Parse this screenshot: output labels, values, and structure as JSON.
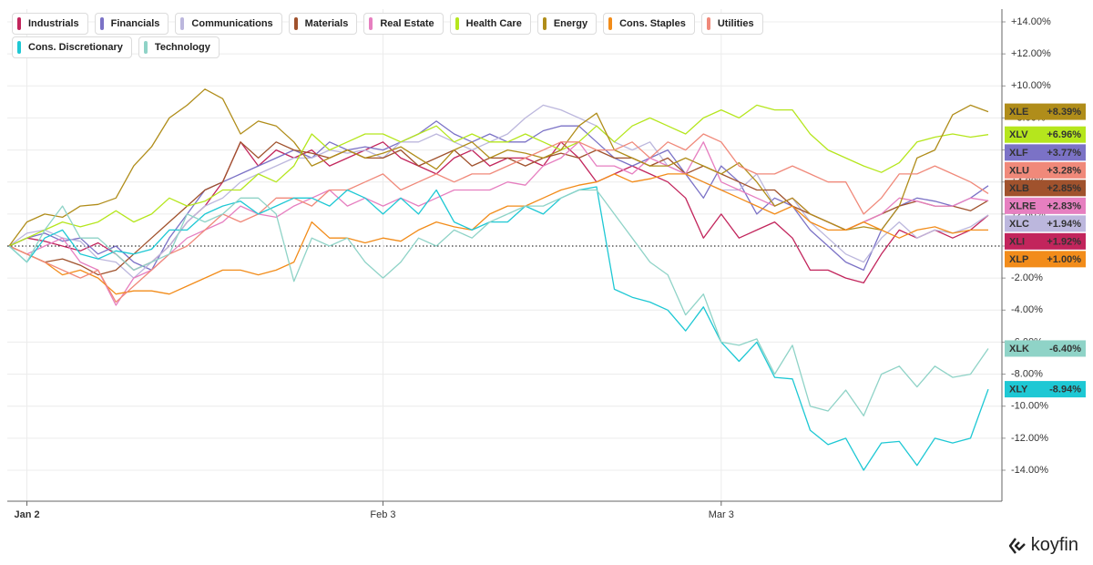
{
  "brand": "koyfin",
  "chart_data": {
    "type": "line",
    "categories": [
      null,
      "Jan 2",
      null,
      null,
      null,
      null,
      null,
      null,
      null,
      null,
      null,
      null,
      null,
      null,
      null,
      null,
      null,
      null,
      null,
      null,
      null,
      "Feb 3",
      null,
      null,
      null,
      null,
      null,
      null,
      null,
      null,
      null,
      null,
      null,
      null,
      null,
      null,
      null,
      null,
      null,
      null,
      "Mar 3",
      null,
      null,
      null,
      null,
      null,
      null,
      null,
      null,
      null,
      null,
      null,
      null,
      null,
      null,
      null
    ],
    "ylim": [
      -15,
      15
    ],
    "yticks": [
      {
        "value": 14,
        "label": "+14.00%"
      },
      {
        "value": 12,
        "label": "+12.00%"
      },
      {
        "value": 10,
        "label": "+10.00%"
      },
      {
        "value": 8,
        "label": "+8.00%"
      },
      {
        "value": 6,
        "label": "+6.00%"
      },
      {
        "value": 4,
        "label": "+4.00%"
      },
      {
        "value": 2,
        "label": "+2.00%"
      },
      {
        "value": 0,
        "label": "0.00%"
      },
      {
        "value": -2,
        "label": "-2.00%"
      },
      {
        "value": -4,
        "label": "-4.00%"
      },
      {
        "value": -6,
        "label": "-6.00%"
      },
      {
        "value": -8,
        "label": "-8.00%"
      },
      {
        "value": -10,
        "label": "-10.00%"
      },
      {
        "value": -12,
        "label": "-12.00%"
      },
      {
        "value": -14,
        "label": "-14.00%"
      }
    ],
    "grid": true,
    "legend": "top-left",
    "series": [
      {
        "name": "Industrials",
        "ticker": "XLI",
        "end_label": "+1.92%",
        "color": "#c2255c",
        "values": [
          0,
          0.5,
          0.3,
          0,
          -0.3,
          0.2,
          -0.5,
          -1.5,
          -1.0,
          0,
          1.5,
          2.5,
          4.0,
          6.5,
          5.0,
          6.0,
          5.5,
          6.0,
          5.0,
          5.5,
          6.0,
          6.5,
          5.5,
          5.0,
          4.5,
          5.5,
          6.0,
          5.0,
          5.5,
          5.5,
          5.0,
          6.5,
          5.5,
          4.0,
          4.5,
          5.0,
          4.5,
          4.0,
          3.0,
          0.5,
          2.0,
          0.5,
          1.0,
          1.5,
          0.5,
          -1.5,
          -1.5,
          -2.0,
          -2.3,
          -0.5,
          1.0,
          0.5,
          1.0,
          0.5,
          1.0,
          1.92
        ]
      },
      {
        "name": "Financials",
        "ticker": "XLF",
        "end_label": "+3.77%",
        "color": "#7b72c6",
        "values": [
          0,
          0.5,
          0.8,
          0.3,
          0.5,
          -0.5,
          0,
          -1.0,
          -1.5,
          0.5,
          2.0,
          3.5,
          4.0,
          4.5,
          5.0,
          5.5,
          6.0,
          5.5,
          6.5,
          6.0,
          6.2,
          6.0,
          6.5,
          7.0,
          7.8,
          7.0,
          6.5,
          7.0,
          6.5,
          6.5,
          7.2,
          7.5,
          7.5,
          6.5,
          5.5,
          5.0,
          5.5,
          6.0,
          4.5,
          3.0,
          5.0,
          4.0,
          2.0,
          3.0,
          2.5,
          1.0,
          0,
          -1.0,
          -1.5,
          1.0,
          2.5,
          3.0,
          2.8,
          2.5,
          3.0,
          3.77
        ]
      },
      {
        "name": "Communications",
        "ticker": "XLC",
        "end_label": "+1.94%",
        "color": "#bcb7dd",
        "values": [
          0,
          0.8,
          1.0,
          0.5,
          0.3,
          -0.8,
          -1.0,
          -2.0,
          -1.0,
          0,
          1.5,
          2.5,
          3.0,
          4.0,
          4.5,
          5.0,
          5.5,
          5.5,
          6.0,
          5.8,
          6.0,
          5.5,
          6.5,
          6.5,
          7.0,
          6.5,
          6.0,
          6.5,
          7.0,
          8.0,
          8.8,
          8.5,
          8.0,
          7.5,
          6.5,
          6.0,
          6.5,
          5.0,
          4.5,
          4.0,
          3.5,
          3.5,
          4.5,
          2.5,
          3.0,
          1.5,
          0.5,
          -0.5,
          -1.0,
          0.5,
          1.5,
          0.5,
          1.0,
          0.8,
          1.2,
          1.94
        ]
      },
      {
        "name": "Materials",
        "ticker": "XLB",
        "end_label": "+2.85%",
        "color": "#a0522d",
        "values": [
          0,
          -0.5,
          -1.0,
          -0.8,
          -1.2,
          -1.8,
          -1.5,
          -0.5,
          0.5,
          1.5,
          2.5,
          3.5,
          4.0,
          6.5,
          5.5,
          6.5,
          6.0,
          5.8,
          5.5,
          6.0,
          5.5,
          5.5,
          6.0,
          5.0,
          5.5,
          6.0,
          5.0,
          5.5,
          5.5,
          5.0,
          5.5,
          5.8,
          5.5,
          6.0,
          5.5,
          5.5,
          5.0,
          5.5,
          4.5,
          5.0,
          4.5,
          4.0,
          3.5,
          3.5,
          2.5,
          2.0,
          1.5,
          1.0,
          1.5,
          2.0,
          2.5,
          2.8,
          2.5,
          2.5,
          2.2,
          2.85
        ]
      },
      {
        "name": "Real Estate",
        "ticker": "XLRE",
        "end_label": "+2.83%",
        "color": "#e67fc0",
        "values": [
          0,
          -0.5,
          0,
          0.5,
          -1.0,
          -1.5,
          -3.7,
          -2.0,
          -1.5,
          -0.5,
          0.5,
          1.0,
          1.5,
          2.5,
          2.0,
          1.8,
          2.5,
          3.0,
          3.5,
          2.5,
          3.0,
          2.5,
          3.0,
          2.5,
          3.0,
          3.5,
          3.5,
          3.5,
          4.0,
          3.8,
          5.0,
          5.5,
          6.5,
          5.0,
          5.0,
          4.5,
          5.5,
          5.0,
          4.5,
          6.5,
          4.0,
          3.5,
          3.0,
          2.5,
          3.0,
          2.0,
          1.5,
          1.0,
          1.5,
          2.0,
          3.0,
          2.8,
          2.5,
          2.5,
          3.0,
          2.83
        ]
      },
      {
        "name": "Health Care",
        "ticker": "XLV",
        "end_label": "+6.96%",
        "color": "#b5e61d",
        "values": [
          0,
          0.5,
          1.0,
          1.5,
          1.2,
          1.5,
          2.2,
          1.5,
          2.0,
          3.0,
          2.5,
          2.8,
          3.5,
          3.5,
          4.5,
          4.0,
          5.0,
          7.0,
          6.0,
          6.5,
          7.0,
          7.0,
          6.5,
          7.0,
          7.5,
          6.5,
          7.0,
          6.5,
          6.5,
          7.0,
          6.5,
          6.0,
          6.5,
          7.5,
          6.5,
          7.5,
          8.0,
          7.5,
          7.0,
          8.0,
          8.5,
          8.0,
          8.8,
          8.5,
          8.5,
          7.0,
          6.0,
          5.5,
          5.0,
          4.6,
          5.2,
          6.5,
          6.8,
          7.0,
          6.8,
          6.96
        ]
      },
      {
        "name": "Energy",
        "ticker": "XLE",
        "end_label": "+8.39%",
        "color": "#b08d1a",
        "values": [
          0,
          1.5,
          2.0,
          1.8,
          2.5,
          2.6,
          3.0,
          5.0,
          6.2,
          8.0,
          8.8,
          9.8,
          9.2,
          7.0,
          7.8,
          7.5,
          6.5,
          5.0,
          5.5,
          6.0,
          5.5,
          5.8,
          6.2,
          5.5,
          4.8,
          6.0,
          6.5,
          5.5,
          6.0,
          5.8,
          5.5,
          6.0,
          7.5,
          8.3,
          6.0,
          5.5,
          5.0,
          5.0,
          5.5,
          5.0,
          4.5,
          5.2,
          4.0,
          2.5,
          3.0,
          2.0,
          1.5,
          1.0,
          1.2,
          1.0,
          2.5,
          5.5,
          6.0,
          8.2,
          8.8,
          8.39
        ]
      },
      {
        "name": "Cons. Staples",
        "ticker": "XLP",
        "end_label": "+1.00%",
        "color": "#f28c1a",
        "values": [
          0,
          -0.5,
          -1.0,
          -1.8,
          -1.5,
          -2.0,
          -3.0,
          -2.8,
          -2.8,
          -3.0,
          -2.5,
          -2.0,
          -1.5,
          -1.5,
          -1.8,
          -1.5,
          -1.0,
          1.5,
          0.5,
          0.5,
          0.2,
          0.5,
          0.3,
          1.0,
          1.5,
          1.2,
          1.0,
          2.0,
          2.5,
          2.5,
          3.0,
          3.5,
          3.8,
          4.0,
          4.5,
          4.0,
          4.2,
          4.5,
          4.5,
          4.0,
          3.5,
          3.0,
          2.5,
          2.0,
          2.5,
          1.5,
          1.0,
          1.0,
          1.5,
          1.0,
          0.5,
          1.0,
          1.2,
          0.8,
          1.0,
          1.0
        ]
      },
      {
        "name": "Utilities",
        "ticker": "XLU",
        "end_label": "+3.28%",
        "color": "#f0897a",
        "values": [
          0,
          -0.5,
          -1.0,
          -1.5,
          -2.0,
          -1.5,
          -3.5,
          -2.5,
          -1.5,
          -0.5,
          0,
          1.0,
          2.0,
          1.5,
          2.0,
          3.0,
          3.0,
          2.5,
          3.5,
          3.5,
          4.0,
          4.5,
          3.5,
          4.0,
          4.5,
          4.0,
          4.5,
          4.5,
          5.0,
          5.5,
          6.0,
          6.5,
          6.5,
          6.0,
          6.0,
          6.5,
          5.5,
          6.5,
          6.0,
          7.0,
          6.5,
          5.0,
          4.5,
          4.5,
          5.0,
          4.5,
          4.0,
          4.0,
          2.0,
          3.0,
          4.5,
          4.5,
          5.0,
          4.5,
          4.0,
          3.28
        ]
      },
      {
        "name": "Cons. Discretionary",
        "ticker": "XLY",
        "end_label": "-8.94%",
        "color": "#1ec8d4",
        "values": [
          0,
          -1.0,
          0.5,
          1.0,
          -0.5,
          -0.8,
          -0.3,
          -0.5,
          -0.2,
          1.0,
          1.0,
          2.0,
          2.5,
          2.8,
          2.0,
          2.5,
          3.0,
          3.0,
          2.5,
          3.5,
          3.0,
          2.0,
          3.0,
          2.0,
          3.5,
          1.5,
          1.0,
          1.5,
          1.5,
          2.5,
          2.0,
          3.0,
          3.5,
          3.7,
          -2.7,
          -3.2,
          -3.5,
          -4.0,
          -5.3,
          -3.8,
          -6.0,
          -7.2,
          -6.0,
          -8.2,
          -8.3,
          -11.5,
          -12.4,
          -12.0,
          -14.0,
          -12.3,
          -12.2,
          -13.7,
          -12.0,
          -12.3,
          -12.0,
          -8.94
        ]
      },
      {
        "name": "Technology",
        "ticker": "XLK",
        "end_label": "-6.40%",
        "color": "#8fd3c7",
        "values": [
          0,
          -1.0,
          1.0,
          2.5,
          0.5,
          0.5,
          -0.5,
          -1.5,
          -1.0,
          -0.5,
          2.0,
          1.5,
          2.0,
          3.0,
          3.0,
          2.0,
          -2.2,
          0.5,
          0,
          0.5,
          -1.0,
          -2.0,
          -1.0,
          0.5,
          0,
          1.0,
          0.5,
          1.5,
          2.0,
          2.5,
          2.5,
          3.0,
          3.5,
          3.5,
          2.0,
          0.5,
          -1.0,
          -1.8,
          -4.3,
          -3.0,
          -6.0,
          -6.2,
          -5.8,
          -8.0,
          -6.2,
          -10.0,
          -10.3,
          -9.0,
          -10.6,
          -8.0,
          -7.5,
          -8.8,
          -7.5,
          -8.2,
          -8.0,
          -6.4
        ]
      }
    ]
  }
}
